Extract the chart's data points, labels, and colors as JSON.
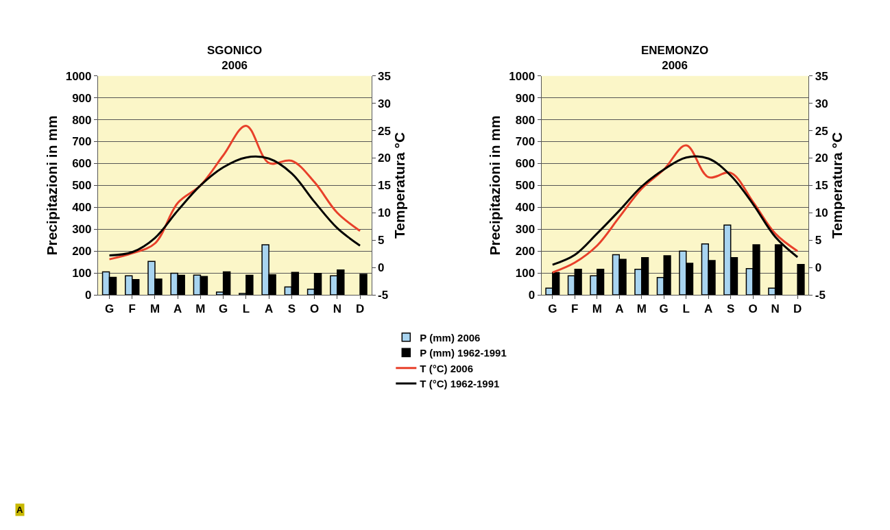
{
  "chart_data": [
    {
      "type": "bar",
      "title": "SGONICO\n2006",
      "ylabel": "Precipitazioni in mm",
      "y2label": "Temperatura °C",
      "categories": [
        "G",
        "F",
        "M",
        "A",
        "M",
        "G",
        "L",
        "A",
        "S",
        "O",
        "N",
        "D"
      ],
      "series": [
        {
          "name": "P (mm) 2006",
          "color": "#a8d4f0",
          "values": [
            105,
            87,
            153,
            99,
            90,
            13,
            6,
            229,
            36,
            26,
            87,
            null
          ]
        },
        {
          "name": "P (mm) 1962-1991",
          "color": "#000000",
          "values": [
            80,
            70,
            72,
            89,
            84,
            105,
            89,
            92,
            103,
            98,
            114,
            94
          ]
        },
        {
          "name": "T (°C) 2006",
          "type": "line",
          "axis": "y2",
          "color": "#e8402a",
          "values": [
            1.5,
            2.6,
            4.4,
            11.8,
            15,
            20.5,
            25.9,
            19.1,
            19.5,
            15.6,
            10,
            6.7
          ]
        },
        {
          "name": "T (°C) 1962-1991",
          "type": "line",
          "axis": "y2",
          "color": "#000000",
          "values": [
            2.2,
            2.8,
            5.4,
            10.4,
            15,
            18.3,
            20.1,
            19.9,
            17.2,
            12,
            7.2,
            4
          ]
        }
      ],
      "ylim": [
        0,
        1000
      ],
      "yticks": [
        0,
        100,
        200,
        300,
        400,
        500,
        600,
        700,
        800,
        900,
        1000
      ],
      "y2lim": [
        -5,
        35
      ],
      "y2ticks": [
        -5,
        0,
        5,
        10,
        15,
        20,
        25,
        30,
        35
      ],
      "grid": "y",
      "legend": "bottom",
      "marker": "none",
      "line_style": "solid",
      "annotations": [
        "A"
      ]
    },
    {
      "type": "bar",
      "title": "ENEMONZO\n2006",
      "ylabel": "Precipitazioni in mm",
      "y2label": "Temperatura °C",
      "categories": [
        "G",
        "F",
        "M",
        "A",
        "M",
        "G",
        "L",
        "A",
        "S",
        "O",
        "N",
        "D"
      ],
      "series": [
        {
          "color": "#a8d4f0",
          "values": [
            31,
            87,
            87,
            183,
            117,
            79,
            200,
            233,
            319,
            120,
            31,
            null
          ]
        },
        {
          "color": "#000000",
          "values": [
            102,
            117,
            117,
            162,
            170,
            179,
            144,
            157,
            170,
            229,
            229,
            139
          ]
        },
        {
          "type": "line",
          "axis": "y2",
          "color": "#e8402a",
          "values": [
            -0.9,
            0.9,
            4,
            9.2,
            14.4,
            17.9,
            22.3,
            16.5,
            17.3,
            12,
            6.2,
            3
          ]
        },
        {
          "type": "line",
          "axis": "y2",
          "color": "#000000",
          "values": [
            0.5,
            2.3,
            6.2,
            10.4,
            14.8,
            17.9,
            20.1,
            19.9,
            16.8,
            11.6,
            5.6,
            1.9
          ]
        }
      ],
      "ylim": [
        0,
        1000
      ],
      "yticks": [
        0,
        100,
        200,
        300,
        400,
        500,
        600,
        700,
        800,
        900,
        1000
      ],
      "y2lim": [
        -5,
        35
      ],
      "y2ticks": [
        -5,
        0,
        5,
        10,
        15,
        20,
        25,
        30,
        35
      ],
      "grid": "y",
      "marker": "none",
      "line_style": "solid"
    }
  ]
}
